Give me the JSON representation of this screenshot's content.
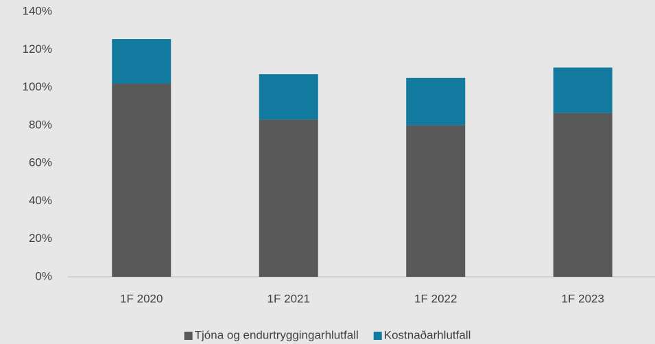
{
  "chart_data": {
    "type": "stacked_bar",
    "categories": [
      "1F 2020",
      "1F 2021",
      "1F 2022",
      "1F 2023"
    ],
    "series": [
      {
        "name": "Tjóna og endurtryggingarhlutfall",
        "color": "#595959",
        "values": [
          102,
          83,
          80,
          86.5
        ]
      },
      {
        "name": "Kostnaðarhlutfall",
        "color": "#117a9e",
        "values": [
          23.5,
          24,
          25,
          24
        ]
      }
    ],
    "ylim": [
      0,
      140
    ],
    "yticks": [
      {
        "value": 0,
        "label": "0%"
      },
      {
        "value": 20,
        "label": "20%"
      },
      {
        "value": 40,
        "label": "40%"
      },
      {
        "value": 60,
        "label": "60%"
      },
      {
        "value": 80,
        "label": "80%"
      },
      {
        "value": 100,
        "label": "100%"
      },
      {
        "value": 120,
        "label": "120%"
      },
      {
        "value": 140,
        "label": "140%"
      }
    ],
    "grid": false,
    "legend": "bottom"
  }
}
